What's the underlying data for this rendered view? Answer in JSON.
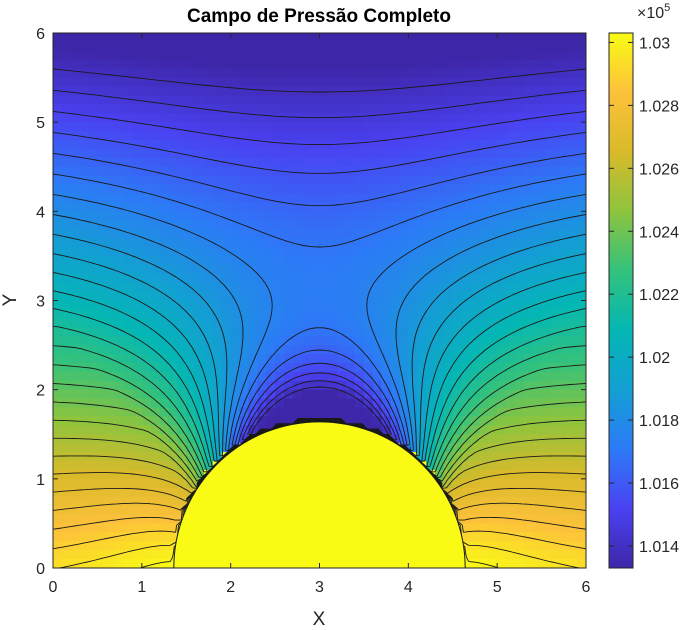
{
  "chart_data": {
    "type": "contourf",
    "title": "Campo de Pressão Completo",
    "xlabel": "X",
    "ylabel": "Y",
    "xlim": [
      0,
      6
    ],
    "ylim": [
      0,
      6
    ],
    "xticks": [
      "0",
      "1",
      "2",
      "3",
      "4",
      "5",
      "6"
    ],
    "yticks": [
      "0",
      "1",
      "2",
      "3",
      "4",
      "5",
      "6"
    ],
    "obstacle": {
      "shape": "semicircle",
      "center_x": 3,
      "center_y": 0,
      "radius": 1.64
    },
    "colorbar": {
      "min": 101330,
      "max": 103030,
      "exponent_label": "×10",
      "exponent": "5",
      "ticks": [
        {
          "value": 101400,
          "label": "1.014"
        },
        {
          "value": 101600,
          "label": "1.016"
        },
        {
          "value": 101800,
          "label": "1.018"
        },
        {
          "value": 102000,
          "label": "1.02"
        },
        {
          "value": 102200,
          "label": "1.022"
        },
        {
          "value": 102400,
          "label": "1.024"
        },
        {
          "value": 102600,
          "label": "1.026"
        },
        {
          "value": 102800,
          "label": "1.028"
        },
        {
          "value": 103000,
          "label": "1.03"
        }
      ],
      "colormap": [
        "#3e26a8",
        "#4a42f2",
        "#2d7af7",
        "#139fd3",
        "#04b7b4",
        "#33c27c",
        "#8dc43e",
        "#d9ba2b",
        "#fdc13b",
        "#f9fb15"
      ]
    }
  }
}
